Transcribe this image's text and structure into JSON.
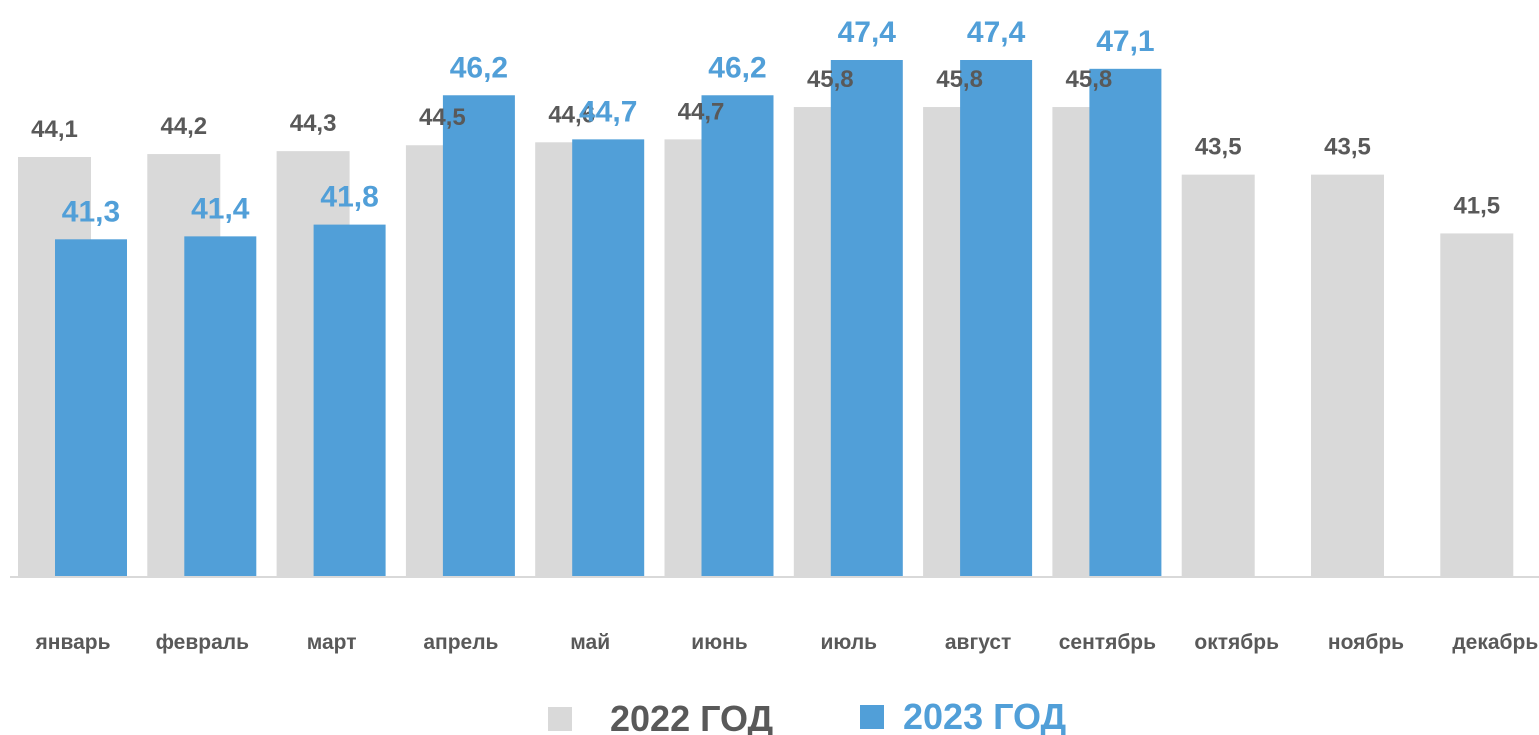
{
  "chart_data": {
    "type": "bar",
    "categories": [
      "январь",
      "февраль",
      "март",
      "апрель",
      "май",
      "июнь",
      "июль",
      "август",
      "сентябрь",
      "октябрь",
      "ноябрь",
      "декабрь"
    ],
    "series": [
      {
        "name": "2022 ГОД",
        "color": "#d9d9d9",
        "label_color": "#595959",
        "values": [
          44.1,
          44.2,
          44.3,
          44.5,
          44.6,
          44.7,
          45.8,
          45.8,
          45.8,
          43.5,
          43.5,
          41.5
        ],
        "labels": [
          "44,1",
          "44,2",
          "44,3",
          "44,5",
          "44,6",
          "44,7",
          "45,8",
          "45,8",
          "45,8",
          "43,5",
          "43,5",
          "41,5"
        ]
      },
      {
        "name": "2023 ГОД",
        "color": "#519fd8",
        "label_color": "#519fd8",
        "values": [
          41.3,
          41.4,
          41.8,
          46.2,
          44.7,
          46.2,
          47.4,
          47.4,
          47.1,
          null,
          null,
          null
        ],
        "labels": [
          "41,3",
          "41,4",
          "41,8",
          "46,2",
          "44,7",
          "46,2",
          "47,4",
          "47,4",
          "47,1",
          "",
          "",
          ""
        ]
      }
    ],
    "legend_position": "bottom",
    "grid": false,
    "axis_line_color": "#d9d9d9"
  }
}
